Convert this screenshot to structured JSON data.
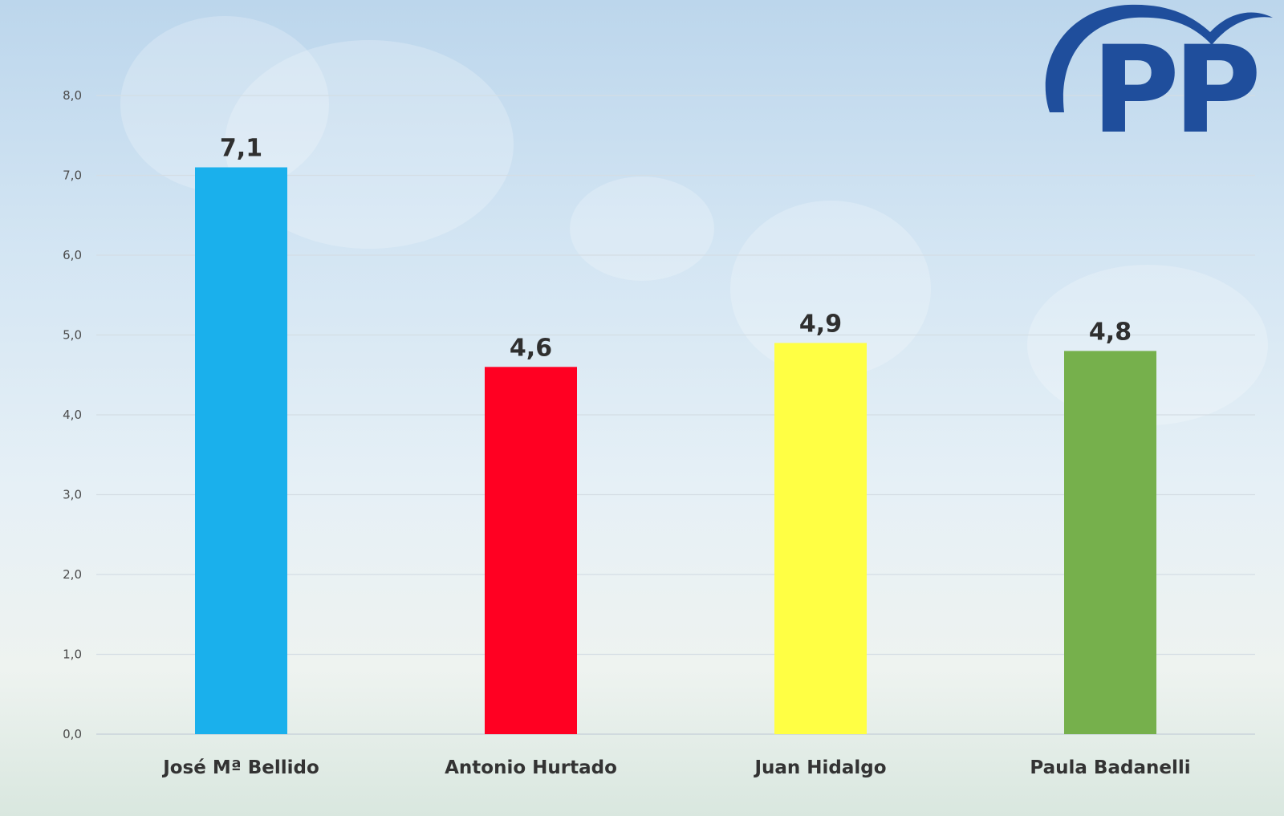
{
  "logo": {
    "text": "PP",
    "color": "#1f4e9c",
    "icon": "pp-party-logo-icon"
  },
  "chart_data": {
    "type": "bar",
    "categories": [
      "José Mª Bellido",
      "Antonio Hurtado",
      "Juan Hidalgo",
      "Paula Badanelli"
    ],
    "values": [
      7.1,
      4.6,
      4.9,
      4.8
    ],
    "value_labels": [
      "7,1",
      "4,6",
      "4,9",
      "4,8"
    ],
    "colors": [
      "#1ab0ec",
      "#ff0022",
      "#ffff44",
      "#76b04c"
    ],
    "yticks": [
      0,
      1,
      2,
      3,
      4,
      5,
      6,
      7,
      8
    ],
    "ytick_labels": [
      "0,0",
      "1,0",
      "2,0",
      "3,0",
      "4,0",
      "5,0",
      "6,0",
      "7,0",
      "8,0"
    ],
    "ylim": [
      0,
      8
    ],
    "grid": true,
    "legend": "none",
    "title": "",
    "xlabel": "",
    "ylabel": ""
  }
}
